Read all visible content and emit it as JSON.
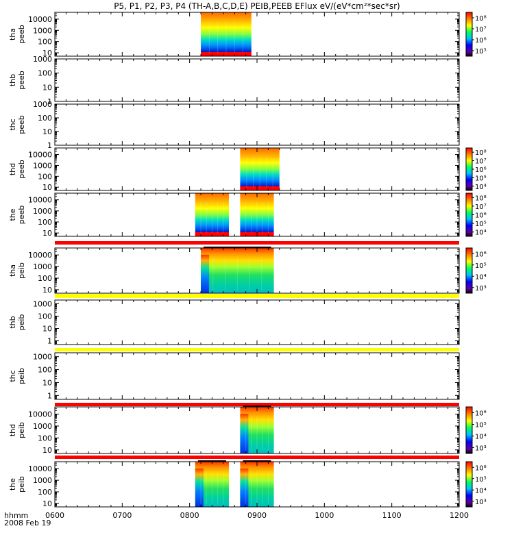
{
  "chart_data": {
    "type": "heatmap",
    "title": "P5, P1, P2, P3, P4 (TH-A,B,C,D,E) PEIB,PEEB EFlux eV/(eV*cm²*sec*sr)",
    "x_axis": {
      "label": "hhmm",
      "date_label": "2008 Feb 19",
      "range": [
        "0600",
        "1200"
      ],
      "ticks": [
        "0600",
        "0700",
        "0800",
        "0900",
        "1000",
        "1100",
        "1200"
      ]
    },
    "colors": {
      "red_band": "#ff0000",
      "yellow_band": "#ffff00",
      "frame": "#000000"
    },
    "panels": [
      {
        "probe": "tha",
        "product": "peeb",
        "ylabels": [
          "tha",
          "peeb"
        ],
        "yticks": [
          "10",
          "100",
          "1000",
          "10000"
        ],
        "ymin": 5,
        "ymax": 40000,
        "colorbar": [
          "10⁵",
          "10⁶",
          "10⁷",
          "10⁸"
        ],
        "band_above": null,
        "blocks": [
          {
            "start": "0810",
            "end": "0855"
          }
        ],
        "spectra": [
          [
            0.7,
            "#ffcc00"
          ],
          [
            0.3,
            "#00b0ff"
          ],
          [
            0.0,
            "#0000c0"
          ]
        ]
      },
      {
        "probe": "thb",
        "product": "peeb",
        "ylabels": [
          "thb",
          "peeb"
        ],
        "yticks": [
          "1",
          "10",
          "100",
          "1000"
        ],
        "ymin": 1,
        "ymax": 1000,
        "colorbar": null,
        "band_above": null,
        "blocks": []
      },
      {
        "probe": "thc",
        "product": "peeb",
        "ylabels": [
          "thc",
          "peeb"
        ],
        "yticks": [
          "1",
          "10",
          "100",
          "1000"
        ],
        "ymin": 1,
        "ymax": 1000,
        "colorbar": null,
        "band_above": null,
        "blocks": []
      },
      {
        "probe": "thd",
        "product": "peeb",
        "ylabels": [
          "thd",
          "peeb"
        ],
        "yticks": [
          "10",
          "100",
          "1000",
          "10000"
        ],
        "ymin": 5,
        "ymax": 40000,
        "colorbar": [
          "10⁴",
          "10⁵",
          "10⁶",
          "10⁷",
          "10⁸"
        ],
        "band_above": null,
        "blocks": [
          {
            "start": "0845",
            "end": "0880"
          }
        ]
      },
      {
        "probe": "the",
        "product": "peeb",
        "ylabels": [
          "the",
          "peeb"
        ],
        "yticks": [
          "10",
          "100",
          "1000",
          "10000"
        ],
        "ymin": 5,
        "ymax": 40000,
        "colorbar": [
          "10⁴",
          "10⁵",
          "10⁶",
          "10⁷",
          "10⁸"
        ],
        "band_above": null,
        "blocks": [
          {
            "start": "0805",
            "end": "0835"
          },
          {
            "start": "0845",
            "end": "0875"
          }
        ]
      },
      {
        "probe": "tha",
        "product": "peib",
        "ylabels": [
          "tha",
          "peib"
        ],
        "yticks": [
          "10",
          "100",
          "1000",
          "10000"
        ],
        "ymin": 5,
        "ymax": 40000,
        "colorbar": [
          "10³",
          "10⁴",
          "10⁵",
          "10⁶"
        ],
        "band_above": "red",
        "blocks": [
          {
            "start": "0810",
            "end": "0875"
          }
        ]
      },
      {
        "probe": "thb",
        "product": "peib",
        "ylabels": [
          "thb",
          "peib"
        ],
        "yticks": [
          "1",
          "10",
          "100",
          "1000"
        ],
        "ymin": 0.5,
        "ymax": 2000,
        "colorbar": null,
        "band_above": "yellow",
        "blocks": []
      },
      {
        "probe": "thc",
        "product": "peib",
        "ylabels": [
          "thc",
          "peib"
        ],
        "yticks": [
          "1",
          "10",
          "100",
          "1000"
        ],
        "ymin": 0.5,
        "ymax": 2000,
        "colorbar": null,
        "band_above": "yellow",
        "blocks": []
      },
      {
        "probe": "thd",
        "product": "peib",
        "ylabels": [
          "thd",
          "peib"
        ],
        "yticks": [
          "10",
          "100",
          "1000",
          "10000"
        ],
        "ymin": 5,
        "ymax": 40000,
        "colorbar": [
          "10³",
          "10⁴",
          "10⁵",
          "10⁶"
        ],
        "band_above": "red",
        "blocks": [
          {
            "start": "0845",
            "end": "0875"
          }
        ]
      },
      {
        "probe": "the",
        "product": "peib",
        "ylabels": [
          "the",
          "peib"
        ],
        "yticks": [
          "10",
          "100",
          "1000",
          "10000"
        ],
        "ymin": 5,
        "ymax": 40000,
        "colorbar": [
          "10³",
          "10⁴",
          "10⁵",
          "10⁶"
        ],
        "band_above": "red",
        "blocks": [
          {
            "start": "0805",
            "end": "0835"
          },
          {
            "start": "0845",
            "end": "0875"
          }
        ]
      }
    ]
  }
}
